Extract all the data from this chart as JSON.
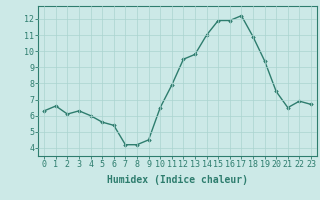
{
  "x": [
    0,
    1,
    2,
    3,
    4,
    5,
    6,
    7,
    8,
    9,
    10,
    11,
    12,
    13,
    14,
    15,
    16,
    17,
    18,
    19,
    20,
    21,
    22,
    23
  ],
  "y": [
    6.3,
    6.6,
    6.1,
    6.3,
    6.0,
    5.6,
    5.4,
    4.2,
    4.2,
    4.5,
    6.5,
    7.9,
    9.5,
    9.8,
    11.0,
    11.9,
    11.9,
    12.2,
    10.9,
    9.4,
    7.5,
    6.5,
    6.9,
    6.7
  ],
  "line_color": "#2e7d6e",
  "marker": "D",
  "marker_size": 1.8,
  "line_width": 1.0,
  "bg_color": "#cce9e7",
  "grid_color": "#aad4d0",
  "axis_color": "#2e7d6e",
  "xlabel": "Humidex (Indice chaleur)",
  "xlabel_fontsize": 7,
  "tick_fontsize": 6,
  "xlim": [
    -0.5,
    23.5
  ],
  "ylim": [
    3.5,
    12.8
  ],
  "yticks": [
    4,
    5,
    6,
    7,
    8,
    9,
    10,
    11,
    12
  ],
  "xticks": [
    0,
    1,
    2,
    3,
    4,
    5,
    6,
    7,
    8,
    9,
    10,
    11,
    12,
    13,
    14,
    15,
    16,
    17,
    18,
    19,
    20,
    21,
    22,
    23
  ]
}
